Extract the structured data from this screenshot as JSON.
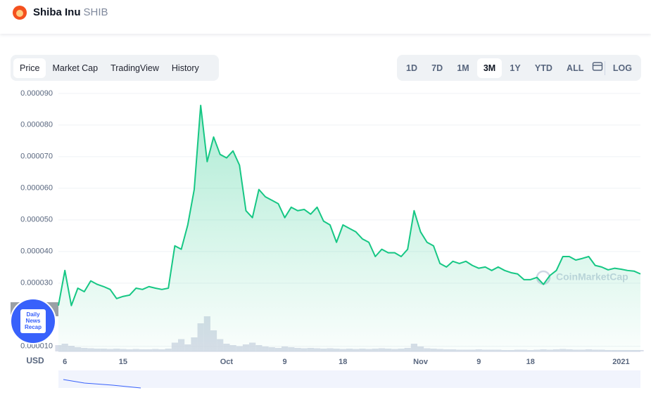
{
  "header": {
    "name": "Shiba Inu",
    "symbol": "SHIB"
  },
  "tabs": [
    "Price",
    "Market Cap",
    "TradingView",
    "History"
  ],
  "active_tab": 0,
  "ranges": [
    "1D",
    "7D",
    "1M",
    "3M",
    "1Y",
    "YTD",
    "ALL"
  ],
  "active_range": 3,
  "log_label": "LOG",
  "badge": [
    "Daily",
    "News",
    "Recap"
  ],
  "chart_data": {
    "type": "area",
    "color": "#16c784",
    "currency": "USD",
    "watermark": "CoinMarketCap",
    "categories": [
      null,
      "6",
      null,
      null,
      null,
      null,
      null,
      null,
      null,
      null,
      "15",
      null,
      null,
      null,
      null,
      null,
      null,
      null,
      null,
      null,
      null,
      null,
      null,
      null,
      null,
      null,
      "Oct",
      null,
      null,
      null,
      null,
      null,
      null,
      null,
      null,
      "9",
      null,
      null,
      null,
      null,
      null,
      null,
      null,
      null,
      "18",
      null,
      null,
      null,
      null,
      null,
      null,
      null,
      null,
      null,
      null,
      null,
      "Nov",
      null,
      null,
      null,
      null,
      null,
      null,
      null,
      null,
      "9",
      null,
      null,
      null,
      null,
      null,
      null,
      null,
      "18",
      null,
      null,
      null,
      null,
      null,
      null,
      null,
      null,
      null,
      null,
      null,
      null,
      null,
      "2021",
      null,
      null,
      null
    ],
    "values": [
      2.29e-05,
      3.4e-05,
      2.29e-05,
      2.84e-05,
      2.73e-05,
      3.07e-05,
      2.96e-05,
      2.89e-05,
      2.8e-05,
      2.51e-05,
      2.58e-05,
      2.62e-05,
      2.84e-05,
      2.8e-05,
      2.89e-05,
      2.84e-05,
      2.8e-05,
      2.84e-05,
      4.18e-05,
      4.07e-05,
      4.84e-05,
      5.96e-05,
      8.62e-05,
      6.84e-05,
      7.62e-05,
      7.07e-05,
      6.96e-05,
      7.18e-05,
      6.73e-05,
      5.29e-05,
      5.07e-05,
      5.96e-05,
      5.73e-05,
      5.62e-05,
      5.51e-05,
      5.07e-05,
      5.4e-05,
      5.29e-05,
      5.33e-05,
      5.18e-05,
      5.4e-05,
      4.96e-05,
      4.84e-05,
      4.29e-05,
      4.84e-05,
      4.73e-05,
      4.62e-05,
      4.4e-05,
      4.29e-05,
      3.84e-05,
      4.07e-05,
      3.96e-05,
      3.96e-05,
      3.84e-05,
      4.07e-05,
      5.29e-05,
      4.62e-05,
      4.29e-05,
      4.18e-05,
      3.62e-05,
      3.51e-05,
      3.69e-05,
      3.62e-05,
      3.69e-05,
      3.56e-05,
      3.47e-05,
      3.51e-05,
      3.4e-05,
      3.51e-05,
      3.4e-05,
      3.33e-05,
      3.29e-05,
      3.11e-05,
      3.11e-05,
      3.18e-05,
      2.96e-05,
      3.24e-05,
      3.4e-05,
      3.84e-05,
      3.84e-05,
      3.73e-05,
      3.78e-05,
      3.84e-05,
      3.56e-05,
      3.51e-05,
      3.42e-05,
      3.47e-05,
      3.44e-05,
      3.4e-05,
      3.38e-05,
      3.29e-05
    ],
    "volume": [
      18,
      22,
      16,
      12,
      10,
      9,
      8,
      8,
      7,
      8,
      7,
      6,
      7,
      6,
      6,
      7,
      6,
      8,
      25,
      35,
      20,
      40,
      80,
      100,
      60,
      35,
      22,
      18,
      15,
      20,
      25,
      18,
      14,
      12,
      10,
      14,
      12,
      10,
      9,
      10,
      9,
      8,
      9,
      8,
      7,
      8,
      7,
      8,
      7,
      8,
      9,
      8,
      7,
      8,
      10,
      22,
      14,
      9,
      8,
      7,
      6,
      6,
      5,
      5,
      5,
      6,
      5,
      5,
      5,
      4,
      4,
      5,
      5,
      4,
      5,
      6,
      5,
      6,
      7,
      6,
      5,
      5,
      6,
      5,
      5,
      4,
      4,
      4,
      4,
      4,
      4
    ],
    "volume_lim": [
      0,
      100
    ],
    "ylim": [
      8.4e-06,
      9.33e-05
    ],
    "yticks": [
      {
        "value": 1e-05,
        "label": "0.000010"
      },
      {
        "value": 3e-05,
        "label": "0.000030"
      },
      {
        "value": 4e-05,
        "label": "0.000040"
      },
      {
        "value": 5e-05,
        "label": "0.000050"
      },
      {
        "value": 6e-05,
        "label": "0.000060"
      },
      {
        "value": 7e-05,
        "label": "0.000070"
      },
      {
        "value": 8e-05,
        "label": "0.000080"
      },
      {
        "value": 9e-05,
        "label": "0.000090"
      }
    ],
    "grid": true
  }
}
